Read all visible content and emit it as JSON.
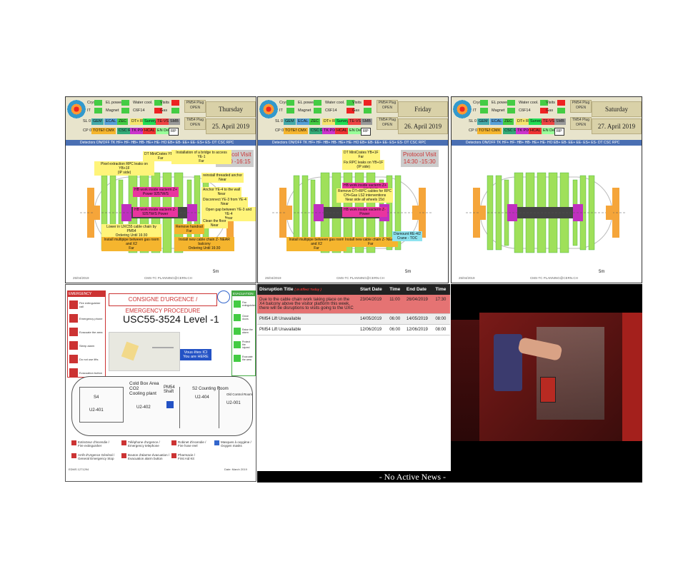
{
  "panels": [
    {
      "day": "Thursday",
      "date": "25. April 2019",
      "visit": "Protocol Visit\n15:30 -16:15",
      "notes": [
        "DT MiniCrates YB+1\nFar",
        "Installation of a bridge to access YE-1\nFar",
        "Pixel extraction RPC leaks on YB+1F\n(IP side)",
        "HB work inside vacterm Z+\nPower 9257W/S",
        "HB work inside vacterm Z-\n9257W/S Power",
        "reinstall threaded anchor\nNear",
        "Anchor YE-4 to the wall\nNear",
        "Disconnect YE-3 from YE-4\nNear",
        "Open gap between YE-3 and YE-4\nNear",
        "Clean the floor\nNear",
        "Lower in UXC55 cable chain by PM54\nOrdering Until 16:30",
        "Remove handrail\nFar",
        "Install multipipe between gas room and X2\nFar",
        "Install new cable chain Z- NEAR balcony\nOrdering Until 16:30"
      ]
    },
    {
      "day": "Friday",
      "date": "26. April 2019",
      "visit": "Protocol Visit\n14:30 -15:30",
      "notes": [
        "DT MiniCrates YB+1F\nFar",
        "Fix RPC leaks on YB+1F\n(IP side)",
        "HB work inside vacterm Z+\nPower 9257W/S",
        "Remove DT+RPC cables for RPC\nCH+Gas LS2 interventions\nNear side all wheels 15d",
        "HB work inside vacterm Z-\nPower",
        "Install multipipe between gas room and X2\nFar",
        "Install new cable chain Z- NEAR\nFar",
        "Dismount RE-4/2\nCrane - TOC"
      ]
    },
    {
      "day": "Saturday",
      "date": "27. April 2019",
      "visit": "",
      "notes": []
    }
  ],
  "header": {
    "cryo": "Cryo",
    "el_power": "EL power",
    "water_cool": "Water cool.",
    "visits": "Visits",
    "it": "IT",
    "magnet": "Magnet",
    "c6f14": "C6F14",
    "gas": "Gas",
    "pm54_plug": "PM54 Plug",
    "pm54_state": "OPEN",
    "tm54_plug": "TM54 Plug",
    "tm54_state": "OPEN",
    "sl": "SL",
    "cp": "CP",
    "zero": "0",
    "tags_row1": [
      "GEM",
      "ECAL",
      "ZEC",
      "DT+ RB",
      "Survey",
      "TE-VSC",
      "SMB"
    ],
    "tags_row2": [
      "TOTEM",
      "CMX",
      "CSC RE",
      "TK PIX",
      "HCAL",
      "EN Dept",
      "RP"
    ],
    "detectors": "Detectors ON/OFF  TK  HF+  HF-  HB+  HB-  HE+  HE-  HO  EB+  EB-  EE+  EE-  ES+  ES-  DT  CSC  RPC",
    "scale": "5m",
    "footer_left": "25/04/2019",
    "footer_mid": "CMS-TC PLANNING@CERN.CH"
  },
  "emergency": {
    "header": "EMERGENCY",
    "title": "CONSIGNE D'URGENCE  /  EMERGENCY PROCEDURE",
    "location": "USC55-3524  Level -1",
    "evacuation": "EVACUATION",
    "here": "Vous êtes ICI\nYou are HERE",
    "rooms": [
      "Cold Box Area\nCO2\nCooling plant",
      "PM54\nShaft",
      "S2 Counting Room",
      "Old Control Room",
      "S4",
      "U2-401",
      "U2-402",
      "U2-404",
      "U2-001"
    ],
    "legend": [
      "Extincteur d'incendie /\nFire extinguisher",
      "Téléphone d'urgence /\nEmergency telephone",
      "Robinet d'incendie /\nFire hose reel",
      "Masques à oxygène /\nOxygen masks",
      "Arrêt d'Urgence Général /\nGeneral Emergency Stop",
      "Bouton d'alarme évacuation /\nEvacuation alarm button",
      "Pharmacie /\nFirst Aid Kit"
    ],
    "edms": "EDMS 1271294",
    "date": "Date: March 2019",
    "left_items": [
      "Fire extinguisher call",
      "Emergency phone",
      "Evacuate the area",
      "Sleep alarm",
      "Do not use lifts",
      "Evacuation button"
    ],
    "right_items": [
      "Fire extinguisher",
      "Close doors",
      "Raise the alarm",
      "Protect the injured",
      "Evacuate the area"
    ]
  },
  "disruptions": {
    "headers": [
      "Disruption Title",
      "Start Date",
      "Time",
      "End Date",
      "Time"
    ],
    "in_effect": "( In Effect Today )",
    "rows": [
      {
        "title": "Due to the cable chain work taking place on the X4 balcony above the visitor platform this week, there will be disruptions to visits going to the UXC",
        "start": "23/04/2019",
        "t1": "11:00",
        "end": "26/04/2019",
        "t2": "17:30",
        "active": true
      },
      {
        "title": "PM54 Lift Unavailable",
        "start": "14/05/2019",
        "t1": "06:00",
        "end": "14/05/2019",
        "t2": "08:00",
        "active": false
      },
      {
        "title": "PM54 Lift Unavailable",
        "start": "12/06/2019",
        "t1": "06:00",
        "end": "12/06/2019",
        "t2": "08:00",
        "active": false
      }
    ]
  },
  "news": "- No Active News -"
}
